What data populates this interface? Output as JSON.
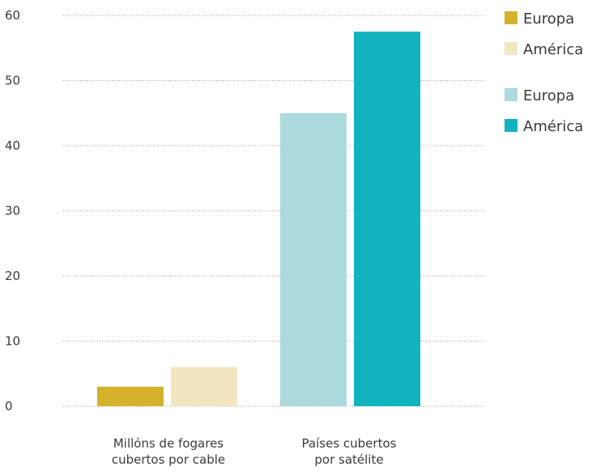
{
  "chart_data": {
    "type": "bar",
    "categories": [
      "Millóns de fogares\ncubertos por cable",
      "Países cubertos\npor satélite"
    ],
    "ylim": [
      0,
      60
    ],
    "yticks": [
      0,
      10,
      20,
      30,
      40,
      50,
      60
    ],
    "grid": true,
    "grid_style": "dotted",
    "legend_position": "top-right",
    "series": [
      {
        "name": "Europa",
        "category": 0,
        "value": 3,
        "color": "#d4b22c"
      },
      {
        "name": "América",
        "category": 0,
        "value": 6,
        "color": "#f1e6bf"
      },
      {
        "name": "Europa",
        "category": 1,
        "value": 45,
        "color": "#acdadd"
      },
      {
        "name": "América",
        "category": 1,
        "value": 57.5,
        "color": "#12b2bf"
      }
    ],
    "legend": [
      {
        "label": "Europa",
        "color": "#d4b22c"
      },
      {
        "label": "América",
        "color": "#f1e6bf"
      },
      {
        "label": "Europa",
        "color": "#acdadd"
      },
      {
        "label": "América",
        "color": "#12b2bf"
      }
    ]
  }
}
